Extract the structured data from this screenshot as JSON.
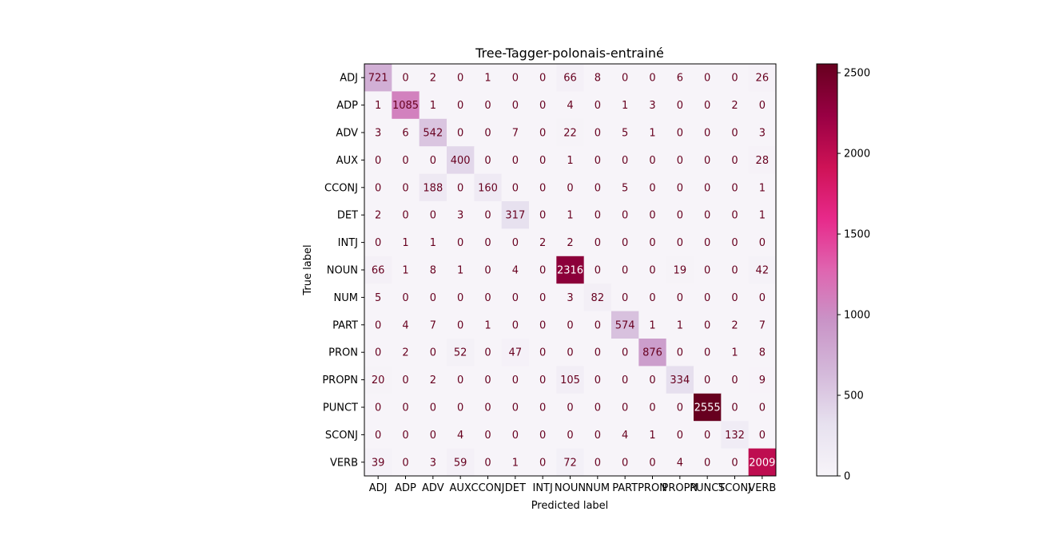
{
  "chart_data": {
    "type": "heatmap",
    "title": "Tree-Tagger-polonais-entrainé",
    "xlabel": "Predicted label",
    "ylabel": "True label",
    "labels": [
      "ADJ",
      "ADP",
      "ADV",
      "AUX",
      "CCONJ",
      "DET",
      "INTJ",
      "NOUN",
      "NUM",
      "PART",
      "PRON",
      "PROPN",
      "PUNCT",
      "SCONJ",
      "VERB"
    ],
    "matrix": [
      [
        721,
        0,
        2,
        0,
        1,
        0,
        0,
        66,
        8,
        0,
        0,
        6,
        0,
        0,
        26
      ],
      [
        1,
        1085,
        1,
        0,
        0,
        0,
        0,
        4,
        0,
        1,
        3,
        0,
        0,
        2,
        0
      ],
      [
        3,
        6,
        542,
        0,
        0,
        7,
        0,
        22,
        0,
        5,
        1,
        0,
        0,
        0,
        3
      ],
      [
        0,
        0,
        0,
        400,
        0,
        0,
        0,
        1,
        0,
        0,
        0,
        0,
        0,
        0,
        28
      ],
      [
        0,
        0,
        188,
        0,
        160,
        0,
        0,
        0,
        0,
        5,
        0,
        0,
        0,
        0,
        1
      ],
      [
        2,
        0,
        0,
        3,
        0,
        317,
        0,
        1,
        0,
        0,
        0,
        0,
        0,
        0,
        1
      ],
      [
        0,
        1,
        1,
        0,
        0,
        0,
        2,
        2,
        0,
        0,
        0,
        0,
        0,
        0,
        0
      ],
      [
        66,
        1,
        8,
        1,
        0,
        4,
        0,
        2316,
        0,
        0,
        0,
        19,
        0,
        0,
        42
      ],
      [
        5,
        0,
        0,
        0,
        0,
        0,
        0,
        3,
        82,
        0,
        0,
        0,
        0,
        0,
        0
      ],
      [
        0,
        4,
        7,
        0,
        1,
        0,
        0,
        0,
        0,
        574,
        1,
        1,
        0,
        2,
        7
      ],
      [
        0,
        2,
        0,
        52,
        0,
        47,
        0,
        0,
        0,
        0,
        876,
        0,
        0,
        1,
        8
      ],
      [
        20,
        0,
        2,
        0,
        0,
        0,
        0,
        105,
        0,
        0,
        0,
        334,
        0,
        0,
        9
      ],
      [
        0,
        0,
        0,
        0,
        0,
        0,
        0,
        0,
        0,
        0,
        0,
        0,
        2555,
        0,
        0
      ],
      [
        0,
        0,
        0,
        4,
        0,
        0,
        0,
        0,
        0,
        4,
        1,
        0,
        0,
        132,
        0
      ],
      [
        39,
        0,
        3,
        59,
        0,
        1,
        0,
        72,
        0,
        0,
        0,
        4,
        0,
        0,
        2009
      ]
    ],
    "colormap": "PuRd",
    "vmin": 0,
    "vmax": 2555,
    "colorbar_ticks": [
      0,
      500,
      1000,
      1500,
      2000,
      2500
    ],
    "text_color_light_cells": "#67001f",
    "text_color_dark_cells": "#ffffff"
  }
}
